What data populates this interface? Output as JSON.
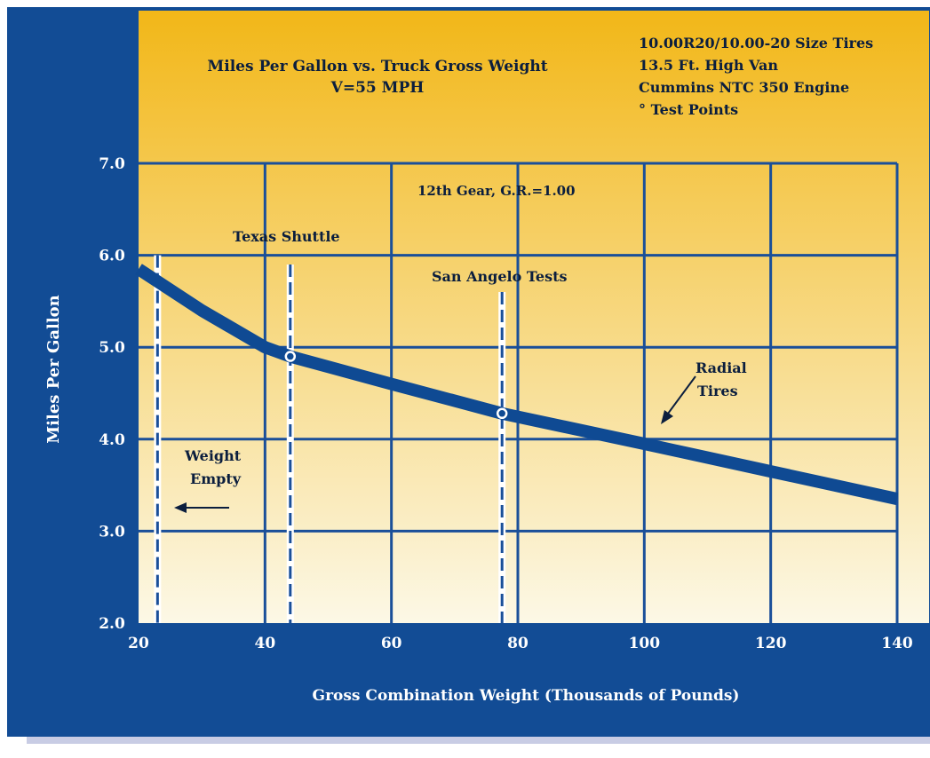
{
  "colors": {
    "frame": "#124C95",
    "grid": "#1A4F99",
    "line": "#0F4A93",
    "bg_top": "#F2B718",
    "bg_bottom": "#FCF8E6",
    "text_dark": "#0B1E3E",
    "text_light": "#FFFFFF"
  },
  "chart_data": {
    "type": "line",
    "title": "Miles Per Gallon vs. Truck Gross Weight",
    "subtitle": "V=55 MPH",
    "xlabel": "Gross Combination Weight (Thousands of Pounds)",
    "ylabel": "Miles Per Gallon",
    "xlim": [
      20,
      140
    ],
    "ylim": [
      2.0,
      7.0
    ],
    "x_ticks": [
      "20",
      "40",
      "60",
      "80",
      "100",
      "120",
      "140"
    ],
    "y_ticks": [
      "2.0",
      "3.0",
      "4.0",
      "5.0",
      "6.0",
      "7.0"
    ],
    "x_tick_values": [
      20,
      40,
      60,
      80,
      100,
      120,
      140
    ],
    "y_tick_values": [
      2,
      3,
      4,
      5,
      6,
      7
    ],
    "grid": true,
    "info_box": [
      "10.00R20/10.00-20 Size Tires",
      "13.5 Ft. High Van",
      "Cummins NTC 350 Engine",
      "° Test Points"
    ],
    "gear_note": "12th Gear,  G.R.=1.00",
    "series": [
      {
        "name": "Radial Tires",
        "x": [
          20,
          30,
          40,
          44,
          60,
          77.5,
          100,
          120,
          140
        ],
        "y": [
          5.85,
          5.4,
          5.0,
          4.9,
          4.6,
          4.28,
          3.95,
          3.65,
          3.35
        ]
      }
    ],
    "test_points": [
      {
        "x": 44,
        "y": 4.9
      },
      {
        "x": 77.5,
        "y": 4.28
      }
    ],
    "reference_lines": [
      {
        "x": 23,
        "y_top": 6.0,
        "label": "Weight Empty"
      },
      {
        "x": 44,
        "y_top": 5.9,
        "label": "Texas Shuttle"
      },
      {
        "x": 77.5,
        "y_top": 5.6,
        "label": "San Angelo Tests"
      }
    ],
    "annotations": {
      "radial": [
        "Radial",
        "Tires"
      ],
      "weight_empty": [
        "Weight",
        "Empty"
      ],
      "texas_shuttle": "Texas Shuttle",
      "san_angelo": "San Angelo Tests"
    }
  }
}
